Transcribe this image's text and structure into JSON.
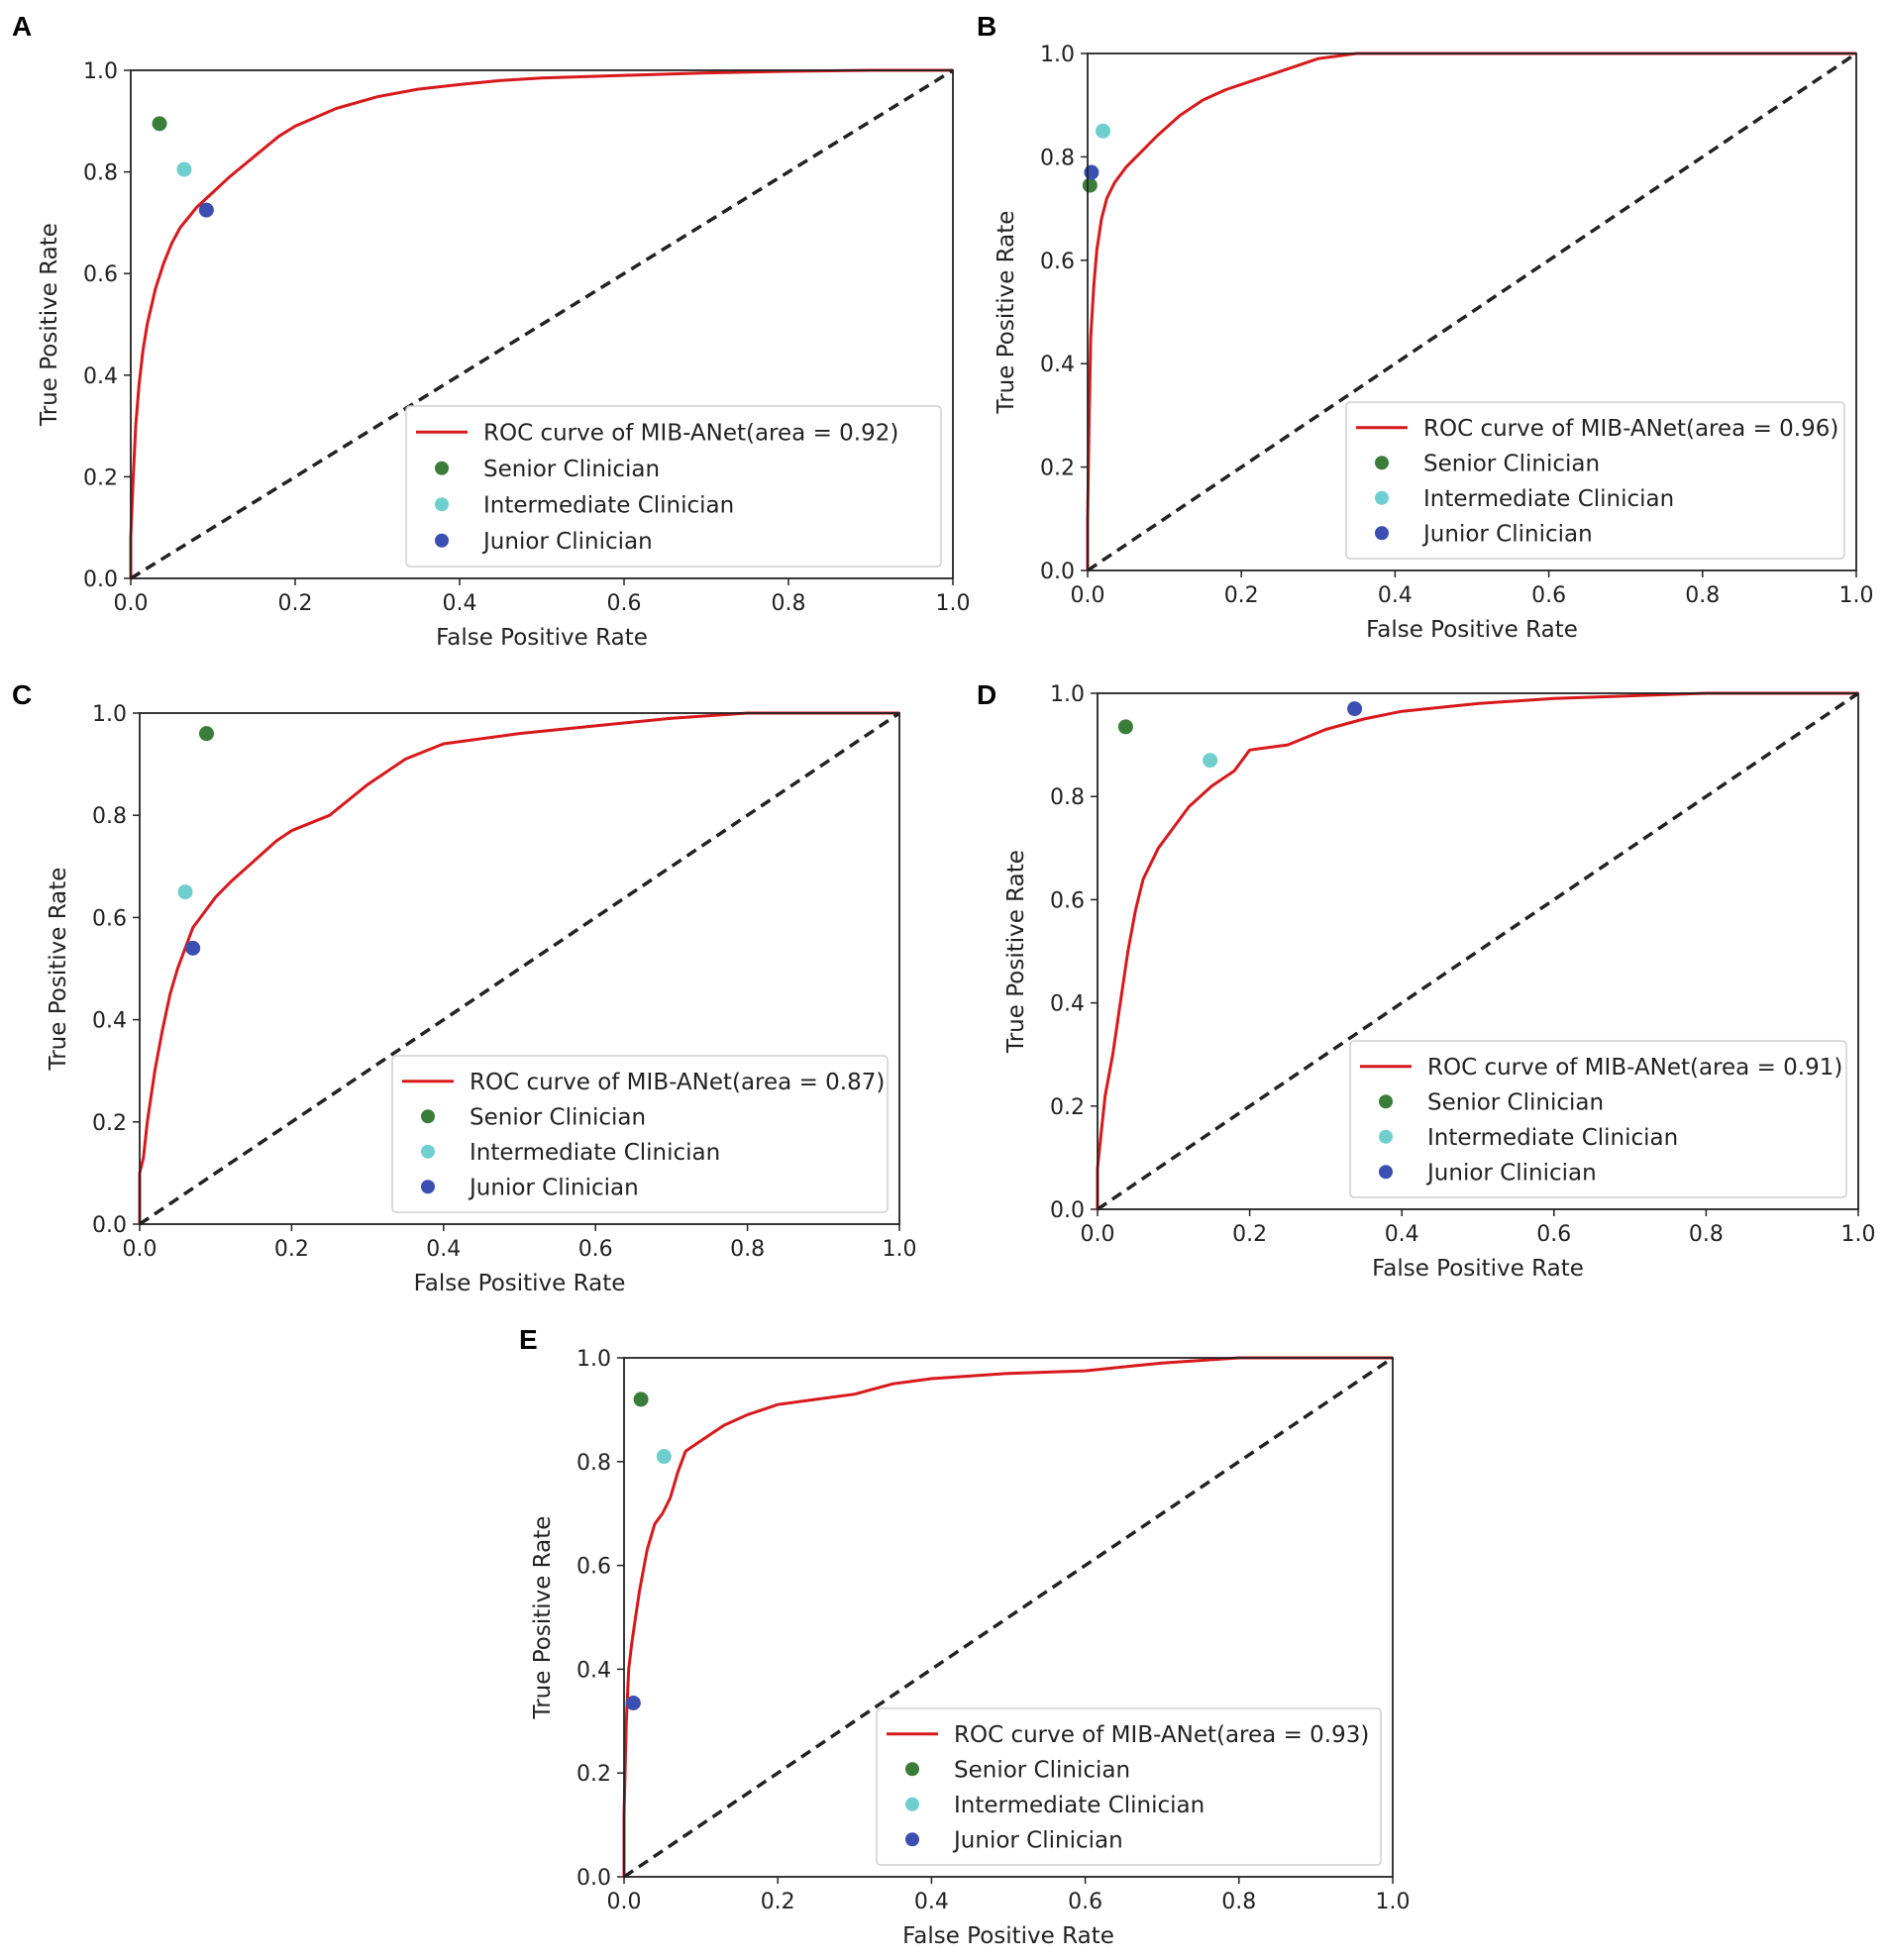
{
  "chart_data": [
    {
      "panel": "A",
      "type": "line",
      "xlabel": "False Positive Rate",
      "ylabel": "True Positive Rate",
      "xlim": [
        0.0,
        1.0
      ],
      "ylim": [
        0.0,
        1.0
      ],
      "ticks": [
        "0.0",
        "0.2",
        "0.4",
        "0.6",
        "0.8",
        "1.0"
      ],
      "legend_position": "lower-right",
      "series": [
        {
          "name": "ROC curve of MIB-ANet(area = 0.92)",
          "color": "#d7191c",
          "x": [
            0,
            0,
            0.003,
            0.006,
            0.01,
            0.015,
            0.02,
            0.03,
            0.04,
            0.05,
            0.06,
            0.08,
            0.1,
            0.12,
            0.15,
            0.18,
            0.2,
            0.25,
            0.3,
            0.35,
            0.4,
            0.45,
            0.5,
            0.6,
            0.7,
            0.8,
            0.9,
            1.0
          ],
          "y": [
            0,
            0.08,
            0.2,
            0.3,
            0.38,
            0.45,
            0.5,
            0.57,
            0.62,
            0.66,
            0.69,
            0.73,
            0.76,
            0.79,
            0.83,
            0.87,
            0.89,
            0.925,
            0.948,
            0.963,
            0.972,
            0.98,
            0.985,
            0.99,
            0.995,
            0.998,
            1.0,
            1.0
          ]
        },
        {
          "name": "chance",
          "color": "#222222",
          "x": [
            0,
            1
          ],
          "y": [
            0,
            1
          ]
        }
      ],
      "points": [
        {
          "name": "Senior Clinician",
          "color": "#3a7d3a",
          "x": 0.035,
          "y": 0.895
        },
        {
          "name": "Intermediate Clinician",
          "color": "#6fcfcf",
          "x": 0.065,
          "y": 0.805
        },
        {
          "name": "Junior Clinician",
          "color": "#3a4fb0",
          "x": 0.092,
          "y": 0.725
        }
      ],
      "legend": [
        "ROC curve of MIB-ANet(area = 0.92)",
        "Senior Clinician",
        "Intermediate Clinician",
        "Junior Clinician"
      ]
    },
    {
      "panel": "B",
      "type": "line",
      "xlabel": "False Positive Rate",
      "ylabel": "True Positive Rate",
      "xlim": [
        0.0,
        1.0
      ],
      "ylim": [
        0.0,
        1.0
      ],
      "ticks": [
        "0.0",
        "0.2",
        "0.4",
        "0.6",
        "0.8",
        "1.0"
      ],
      "legend_position": "lower-right",
      "series": [
        {
          "name": "ROC curve of MIB-ANet(area = 0.96)",
          "color": "#d7191c",
          "x": [
            0,
            0,
            0.002,
            0.004,
            0.008,
            0.012,
            0.018,
            0.025,
            0.035,
            0.05,
            0.07,
            0.09,
            0.12,
            0.15,
            0.18,
            0.22,
            0.26,
            0.3,
            0.35,
            0.4,
            0.6,
            0.8,
            1.0
          ],
          "y": [
            0,
            0.1,
            0.3,
            0.45,
            0.55,
            0.62,
            0.68,
            0.72,
            0.75,
            0.78,
            0.81,
            0.84,
            0.88,
            0.91,
            0.93,
            0.95,
            0.97,
            0.99,
            1.0,
            1.0,
            1.0,
            1.0,
            1.0
          ]
        },
        {
          "name": "chance",
          "color": "#222222",
          "x": [
            0,
            1
          ],
          "y": [
            0,
            1
          ]
        }
      ],
      "points": [
        {
          "name": "Senior Clinician",
          "color": "#3a7d3a",
          "x": 0.003,
          "y": 0.745
        },
        {
          "name": "Intermediate Clinician",
          "color": "#6fcfcf",
          "x": 0.02,
          "y": 0.85
        },
        {
          "name": "Junior Clinician",
          "color": "#3a4fb0",
          "x": 0.005,
          "y": 0.77
        }
      ],
      "legend": [
        "ROC curve of MIB-ANet(area = 0.96)",
        "Senior Clinician",
        "Intermediate Clinician",
        "Junior Clinician"
      ]
    },
    {
      "panel": "C",
      "type": "line",
      "xlabel": "False Positive Rate",
      "ylabel": "True Positive Rate",
      "xlim": [
        0.0,
        1.0
      ],
      "ylim": [
        0.0,
        1.0
      ],
      "ticks": [
        "0.0",
        "0.2",
        "0.4",
        "0.6",
        "0.8",
        "1.0"
      ],
      "legend_position": "lower-right",
      "series": [
        {
          "name": "ROC curve of MIB-ANet(area = 0.87)",
          "color": "#d7191c",
          "x": [
            0,
            0,
            0.005,
            0.01,
            0.02,
            0.03,
            0.04,
            0.05,
            0.06,
            0.07,
            0.08,
            0.1,
            0.12,
            0.15,
            0.18,
            0.2,
            0.25,
            0.3,
            0.35,
            0.4,
            0.5,
            0.6,
            0.7,
            0.8,
            0.9,
            1.0
          ],
          "y": [
            0,
            0.1,
            0.13,
            0.2,
            0.3,
            0.38,
            0.45,
            0.5,
            0.54,
            0.58,
            0.6,
            0.64,
            0.67,
            0.71,
            0.75,
            0.77,
            0.8,
            0.86,
            0.91,
            0.94,
            0.96,
            0.975,
            0.99,
            1.0,
            1.0,
            1.0
          ]
        },
        {
          "name": "chance",
          "color": "#222222",
          "x": [
            0,
            1
          ],
          "y": [
            0,
            1
          ]
        }
      ],
      "points": [
        {
          "name": "Senior Clinician",
          "color": "#3a7d3a",
          "x": 0.088,
          "y": 0.96
        },
        {
          "name": "Intermediate Clinician",
          "color": "#6fcfcf",
          "x": 0.06,
          "y": 0.65
        },
        {
          "name": "Junior Clinician",
          "color": "#3a4fb0",
          "x": 0.07,
          "y": 0.54
        }
      ],
      "legend": [
        "ROC curve of MIB-ANet(area = 0.87)",
        "Senior Clinician",
        "Intermediate Clinician",
        "Junior Clinician"
      ]
    },
    {
      "panel": "D",
      "type": "line",
      "xlabel": "False Positive Rate",
      "ylabel": "True Positive Rate",
      "xlim": [
        0.0,
        1.0
      ],
      "ylim": [
        0.0,
        1.0
      ],
      "ticks": [
        "0.0",
        "0.2",
        "0.4",
        "0.6",
        "0.8",
        "1.0"
      ],
      "legend_position": "lower-right",
      "series": [
        {
          "name": "ROC curve of MIB-ANet(area = 0.91)",
          "color": "#d7191c",
          "x": [
            0,
            0,
            0.005,
            0.01,
            0.02,
            0.03,
            0.04,
            0.05,
            0.06,
            0.08,
            0.1,
            0.12,
            0.15,
            0.18,
            0.2,
            0.25,
            0.3,
            0.35,
            0.4,
            0.5,
            0.6,
            0.7,
            0.8,
            0.9,
            1.0
          ],
          "y": [
            0,
            0.08,
            0.15,
            0.22,
            0.3,
            0.4,
            0.5,
            0.58,
            0.64,
            0.7,
            0.74,
            0.78,
            0.82,
            0.85,
            0.89,
            0.9,
            0.93,
            0.95,
            0.965,
            0.98,
            0.99,
            0.995,
            1.0,
            1.0,
            1.0
          ]
        },
        {
          "name": "chance",
          "color": "#222222",
          "x": [
            0,
            1
          ],
          "y": [
            0,
            1
          ]
        }
      ],
      "points": [
        {
          "name": "Senior Clinician",
          "color": "#3a7d3a",
          "x": 0.037,
          "y": 0.935
        },
        {
          "name": "Intermediate Clinician",
          "color": "#6fcfcf",
          "x": 0.148,
          "y": 0.87
        },
        {
          "name": "Junior Clinician",
          "color": "#3a4fb0",
          "x": 0.338,
          "y": 0.97
        }
      ],
      "legend": [
        "ROC curve of MIB-ANet(area = 0.91)",
        "Senior Clinician",
        "Intermediate Clinician",
        "Junior Clinician"
      ]
    },
    {
      "panel": "E",
      "type": "line",
      "xlabel": "False Positive Rate",
      "ylabel": "True Positive Rate",
      "xlim": [
        0.0,
        1.0
      ],
      "ylim": [
        0.0,
        1.0
      ],
      "ticks": [
        "0.0",
        "0.2",
        "0.4",
        "0.6",
        "0.8",
        "1.0"
      ],
      "legend_position": "lower-right",
      "series": [
        {
          "name": "ROC curve of MIB-ANet(area = 0.93)",
          "color": "#d7191c",
          "x": [
            0,
            0,
            0.003,
            0.006,
            0.01,
            0.015,
            0.02,
            0.03,
            0.04,
            0.05,
            0.06,
            0.07,
            0.08,
            0.1,
            0.13,
            0.16,
            0.2,
            0.25,
            0.3,
            0.35,
            0.4,
            0.5,
            0.6,
            0.7,
            0.8,
            0.9,
            1.0
          ],
          "y": [
            0,
            0.12,
            0.3,
            0.4,
            0.45,
            0.5,
            0.55,
            0.63,
            0.68,
            0.7,
            0.73,
            0.78,
            0.82,
            0.84,
            0.87,
            0.89,
            0.91,
            0.92,
            0.93,
            0.95,
            0.96,
            0.97,
            0.975,
            0.99,
            1.0,
            1.0,
            1.0
          ]
        },
        {
          "name": "chance",
          "color": "#222222",
          "x": [
            0,
            1
          ],
          "y": [
            0,
            1
          ]
        }
      ],
      "points": [
        {
          "name": "Senior Clinician",
          "color": "#3a7d3a",
          "x": 0.022,
          "y": 0.92
        },
        {
          "name": "Intermediate Clinician",
          "color": "#6fcfcf",
          "x": 0.052,
          "y": 0.81
        },
        {
          "name": "Junior Clinician",
          "color": "#3a4fb0",
          "x": 0.012,
          "y": 0.335
        }
      ],
      "legend": [
        "ROC curve of MIB-ANet(area = 0.93)",
        "Senior Clinician",
        "Intermediate Clinician",
        "Junior Clinician"
      ]
    }
  ]
}
